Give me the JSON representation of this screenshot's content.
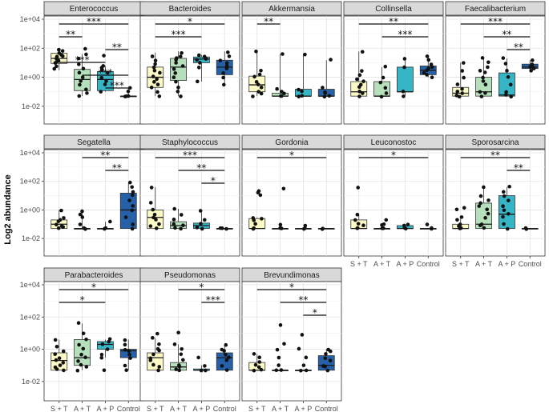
{
  "chart_data": {
    "type": "boxplot",
    "ylabel": "Log2 abundance",
    "y_scale": "log10",
    "ylim": [
      0.001,
      10000
    ],
    "y_ticks": [
      {
        "value": 0.01,
        "label": "1e-02"
      },
      {
        "value": 1,
        "label": "1e+00"
      },
      {
        "value": 100,
        "label": "1e+02"
      },
      {
        "value": 10000,
        "label": "1e+04"
      }
    ],
    "groups": [
      "S + T",
      "A + T",
      "A + P",
      "Control"
    ],
    "group_colors": [
      "#fbf9c6",
      "#b6dfbc",
      "#35b5c6",
      "#2560a8"
    ],
    "panels": [
      {
        "title": "Enterococcus",
        "boxes": [
          [
            3,
            9,
            20,
            45,
            80
          ],
          [
            0.05,
            0.12,
            0.7,
            3.5,
            40
          ],
          [
            0.1,
            0.12,
            0.7,
            2.5,
            6
          ],
          [
            0.05,
            0.05,
            0.05,
            0.05,
            0.2
          ]
        ],
        "points": [
          [
            4,
            6,
            9,
            12,
            15,
            18,
            20,
            25,
            30,
            35,
            45,
            60,
            80
          ],
          [
            0.05,
            0.08,
            0.15,
            0.3,
            0.6,
            1,
            2,
            4,
            8,
            20,
            40,
            90
          ],
          [
            0.1,
            0.3,
            0.5,
            1,
            2,
            3,
            5,
            6,
            30
          ],
          [
            0.05,
            0.05,
            0.05,
            0.1,
            0.2
          ]
        ],
        "sig": [
          {
            "from": 1,
            "to": 4,
            "label": "***"
          },
          {
            "from": 1,
            "to": 2,
            "label": "**"
          },
          {
            "from": 3,
            "to": 4,
            "label": "**"
          },
          {
            "from": 1,
            "to": 3,
            "label": "***"
          },
          {
            "from": 2,
            "to": 4,
            "label": "***"
          },
          {
            "from": 3,
            "to": 4,
            "label": "***"
          }
        ]
      },
      {
        "title": "Bacteroides",
        "boxes": [
          [
            0.05,
            0.2,
            1,
            5,
            50
          ],
          [
            0.05,
            0.6,
            5,
            20,
            60
          ],
          [
            0.5,
            10,
            18,
            25,
            35
          ],
          [
            0.3,
            1.5,
            5,
            15,
            60
          ]
        ],
        "points": [
          [
            0.05,
            0.1,
            0.2,
            0.3,
            0.5,
            0.8,
            1.2,
            2,
            3,
            5,
            8,
            15,
            30
          ],
          [
            0.05,
            0.1,
            0.2,
            0.5,
            1,
            2,
            4,
            6,
            10,
            15,
            20,
            25,
            50
          ],
          [
            0.5,
            5,
            10,
            15,
            20,
            25,
            35
          ],
          [
            0.3,
            1,
            2,
            4,
            6,
            10,
            15,
            30,
            50
          ]
        ],
        "sig": [
          {
            "from": 1,
            "to": 4,
            "label": "*"
          },
          {
            "from": 1,
            "to": 3,
            "label": "***"
          }
        ]
      },
      {
        "title": "Akkermansia",
        "boxes": [
          [
            0.05,
            0.1,
            0.3,
            1.2,
            60
          ],
          [
            0.05,
            0.05,
            0.05,
            0.08,
            40
          ],
          [
            0.05,
            0.05,
            0.05,
            0.15,
            40
          ],
          [
            0.05,
            0.05,
            0.05,
            0.15,
            15
          ]
        ],
        "points": [
          [
            0.05,
            0.08,
            0.1,
            0.2,
            0.3,
            0.5,
            1,
            1.5,
            3,
            60
          ],
          [
            0.05,
            0.05,
            0.08,
            0.1,
            0.15,
            40
          ],
          [
            0.05,
            0.05,
            0.1,
            0.15,
            40
          ],
          [
            0.05,
            0.05,
            0.08,
            0.1,
            0.2,
            15
          ]
        ],
        "sig": [
          {
            "from": 1,
            "to": 2,
            "label": "**"
          }
        ]
      },
      {
        "title": "Collinsella",
        "boxes": [
          [
            0.05,
            0.05,
            0.1,
            0.5,
            60
          ],
          [
            0.05,
            0.05,
            0.05,
            0.5,
            5
          ],
          [
            0.05,
            0.1,
            0.1,
            5,
            20
          ],
          [
            1,
            1.5,
            3,
            6,
            30
          ]
        ],
        "points": [
          [
            0.05,
            0.08,
            0.1,
            0.2,
            0.3,
            0.5,
            0.8,
            1.5,
            3,
            60
          ],
          [
            0.05,
            0.08,
            0.2,
            0.4,
            1,
            5
          ],
          [
            0.05,
            0.1,
            5,
            20
          ],
          [
            1,
            1.5,
            2,
            3,
            4,
            5,
            8,
            15,
            30
          ]
        ],
        "sig": [
          {
            "from": 1,
            "to": 4,
            "label": "**"
          },
          {
            "from": 2,
            "to": 4,
            "label": "***"
          }
        ]
      },
      {
        "title": "Faecalibacterium",
        "boxes": [
          [
            0.05,
            0.05,
            0.08,
            0.2,
            10
          ],
          [
            0.05,
            0.05,
            0.1,
            1,
            20
          ],
          [
            0.05,
            0.05,
            0.06,
            2,
            20
          ],
          [
            3,
            4,
            5,
            8,
            15
          ]
        ],
        "points": [
          [
            0.05,
            0.06,
            0.08,
            0.1,
            0.15,
            0.3,
            1,
            3,
            10
          ],
          [
            0.05,
            0.08,
            0.1,
            0.3,
            0.5,
            1,
            2,
            3,
            5,
            10,
            20
          ],
          [
            0.05,
            0.06,
            0.1,
            0.3,
            1,
            3,
            8,
            20
          ],
          [
            3,
            4,
            5,
            6,
            8,
            15
          ]
        ],
        "sig": [
          {
            "from": 1,
            "to": 4,
            "label": "***"
          },
          {
            "from": 2,
            "to": 4,
            "label": "**"
          },
          {
            "from": 3,
            "to": 4,
            "label": "**"
          }
        ]
      },
      {
        "title": "Segatella",
        "boxes": [
          [
            0.05,
            0.05,
            0.1,
            0.2,
            1
          ],
          [
            0.05,
            0.05,
            0.05,
            0.05,
            0.8
          ],
          [
            0.05,
            0.05,
            0.05,
            0.05,
            0.15
          ],
          [
            0.05,
            0.05,
            1,
            15,
            80
          ]
        ],
        "points": [
          [
            0.05,
            0.06,
            0.08,
            0.1,
            0.15,
            0.2,
            0.3,
            1
          ],
          [
            0.05,
            0.05,
            0.1,
            0.3,
            0.5,
            0.8
          ],
          [
            0.05,
            0.05,
            0.15
          ],
          [
            0.05,
            0.1,
            0.3,
            1,
            2,
            5,
            10,
            20,
            40,
            80
          ]
        ],
        "sig": [
          {
            "from": 2,
            "to": 4,
            "label": "**"
          },
          {
            "from": 3,
            "to": 4,
            "label": "**"
          }
        ]
      },
      {
        "title": "Staphylococcus",
        "boxes": [
          [
            0.05,
            0.05,
            0.3,
            1,
            40
          ],
          [
            0.05,
            0.05,
            0.08,
            0.15,
            1.2
          ],
          [
            0.05,
            0.05,
            0.08,
            0.12,
            0.8
          ],
          [
            0.05,
            0.05,
            0.05,
            0.05,
            0.05
          ]
        ],
        "points": [
          [
            0.05,
            0.08,
            0.1,
            0.2,
            0.3,
            0.5,
            1,
            3,
            40
          ],
          [
            0.05,
            0.06,
            0.08,
            0.1,
            0.2,
            0.5,
            1.2
          ],
          [
            0.05,
            0.06,
            0.1,
            0.2,
            0.8
          ],
          [
            0.05,
            0.05,
            0.05
          ]
        ],
        "sig": [
          {
            "from": 1,
            "to": 4,
            "label": "***"
          },
          {
            "from": 2,
            "to": 4,
            "label": "**"
          },
          {
            "from": 3,
            "to": 4,
            "label": "*"
          }
        ]
      },
      {
        "title": "Gordonia",
        "boxes": [
          [
            0.05,
            0.05,
            0.05,
            0.25,
            0.3
          ],
          [
            0.05,
            0.05,
            0.05,
            0.05,
            0.05
          ],
          [
            0.05,
            0.05,
            0.05,
            0.05,
            0.05
          ],
          [
            0.05,
            0.05,
            0.05,
            0.05,
            0.05
          ]
        ],
        "points": [
          [
            0.05,
            0.05,
            0.1,
            0.2,
            0.25,
            0.3,
            10,
            15,
            20
          ],
          [
            0.05,
            0.05,
            0.1,
            30
          ],
          [
            0.05,
            0.05,
            0.08
          ],
          [
            0.05,
            0.05
          ]
        ],
        "sig": [
          {
            "from": 1,
            "to": 4,
            "label": "*"
          }
        ]
      },
      {
        "title": "Leuconostoc",
        "boxes": [
          [
            0.05,
            0.05,
            0.05,
            0.2,
            0.5
          ],
          [
            0.05,
            0.05,
            0.05,
            0.05,
            0.05
          ],
          [
            0.05,
            0.05,
            0.05,
            0.08,
            0.1
          ],
          [
            0.05,
            0.05,
            0.05,
            0.05,
            0.05
          ]
        ],
        "points": [
          [
            0.05,
            0.05,
            0.08,
            0.1,
            0.2,
            0.5,
            40
          ],
          [
            0.05,
            0.05,
            0.08,
            0.1,
            0.2
          ],
          [
            0.05,
            0.06,
            0.08,
            0.1
          ],
          [
            0.05,
            0.05,
            0.1
          ]
        ],
        "sig": [
          {
            "from": 1,
            "to": 4,
            "label": "*"
          }
        ]
      },
      {
        "title": "Sporosarcina",
        "boxes": [
          [
            0.05,
            0.05,
            0.05,
            0.1,
            0.3
          ],
          [
            0.05,
            0.05,
            0.1,
            3,
            40
          ],
          [
            0.05,
            0.05,
            0.5,
            10,
            40
          ],
          [
            0.05,
            0.05,
            0.05,
            0.05,
            0.05
          ]
        ],
        "points": [
          [
            0.05,
            0.05,
            0.08,
            0.1,
            0.2,
            0.3,
            1,
            1.5
          ],
          [
            0.05,
            0.08,
            0.1,
            0.3,
            0.5,
            1,
            2,
            3,
            5,
            10,
            40
          ],
          [
            0.05,
            0.1,
            0.3,
            0.5,
            1,
            2,
            5,
            10,
            20,
            40
          ],
          [
            0.05,
            0.05
          ]
        ],
        "sig": [
          {
            "from": 1,
            "to": 4,
            "label": "**"
          },
          {
            "from": 3,
            "to": 4,
            "label": "**"
          }
        ]
      },
      {
        "title": "Parabacteroides",
        "boxes": [
          [
            0.05,
            0.05,
            0.2,
            0.6,
            4
          ],
          [
            0.05,
            0.1,
            0.3,
            4,
            40
          ],
          [
            0.3,
            1,
            2,
            3,
            4
          ],
          [
            0.05,
            0.3,
            0.8,
            1,
            4
          ]
        ],
        "points": [
          [
            0.05,
            0.06,
            0.08,
            0.1,
            0.15,
            0.2,
            0.3,
            0.5,
            0.8,
            1.5,
            4
          ],
          [
            0.05,
            0.08,
            0.1,
            0.2,
            0.3,
            0.5,
            1,
            2,
            4,
            10,
            40
          ],
          [
            0.05,
            0.3,
            0.5,
            1,
            2,
            3,
            4
          ],
          [
            0.05,
            0.1,
            0.3,
            0.5,
            0.8,
            1,
            2,
            4
          ]
        ],
        "sig": [
          {
            "from": 1,
            "to": 4,
            "label": "*"
          },
          {
            "from": 1,
            "to": 3,
            "label": "*"
          }
        ]
      },
      {
        "title": "Pseudomonas",
        "boxes": [
          [
            0.05,
            0.05,
            0.3,
            0.6,
            5
          ],
          [
            0.05,
            0.05,
            0.08,
            0.15,
            2
          ],
          [
            0.05,
            0.05,
            0.05,
            0.06,
            0.1
          ],
          [
            0.05,
            0.05,
            0.3,
            0.6,
            2
          ]
        ],
        "points": [
          [
            0.05,
            0.08,
            0.1,
            0.2,
            0.3,
            0.5,
            0.8,
            1,
            2,
            5,
            10
          ],
          [
            0.05,
            0.06,
            0.08,
            0.1,
            0.2,
            0.5,
            1,
            2,
            10
          ],
          [
            0.05,
            0.05,
            0.1,
            0.3
          ],
          [
            0.05,
            0.1,
            0.2,
            0.3,
            0.5,
            0.8,
            1,
            2
          ]
        ],
        "sig": [
          {
            "from": 2,
            "to": 4,
            "label": "*"
          },
          {
            "from": 3,
            "to": 4,
            "label": "***"
          }
        ]
      },
      {
        "title": "Brevundimonas",
        "boxes": [
          [
            0.05,
            0.05,
            0.05,
            0.15,
            0.5
          ],
          [
            0.05,
            0.05,
            0.05,
            0.05,
            0.05
          ],
          [
            0.05,
            0.05,
            0.05,
            0.05,
            0.05
          ],
          [
            0.05,
            0.05,
            0.1,
            0.4,
            1
          ]
        ],
        "points": [
          [
            0.05,
            0.05,
            0.08,
            0.1,
            0.15,
            0.3,
            0.5
          ],
          [
            0.05,
            0.05,
            0.1,
            0.3,
            1,
            2,
            30
          ],
          [
            0.05,
            0.05,
            0.1,
            0.3,
            1,
            8
          ],
          [
            0.05,
            0.08,
            0.1,
            0.2,
            0.3,
            0.5,
            0.8,
            1
          ]
        ],
        "sig": [
          {
            "from": 1,
            "to": 4,
            "label": "*"
          },
          {
            "from": 2,
            "to": 4,
            "label": "**"
          },
          {
            "from": 3,
            "to": 4,
            "label": "*"
          }
        ]
      }
    ]
  }
}
